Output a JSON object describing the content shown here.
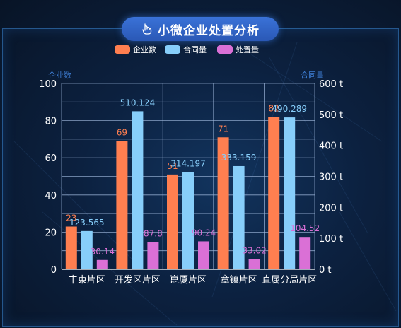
{
  "title": "小微企业处置分析",
  "icon": "hand-pointer-icon",
  "colors": {
    "enterprise": "#ff7f50",
    "contract": "#87cefa",
    "disposal": "#da70d6",
    "grid": "#9fb8dc",
    "axis_text": "#ffffff",
    "axis_name": "#3f7fd6"
  },
  "chart_data": {
    "type": "bar",
    "title": "小微企业处置分析",
    "categories": [
      "丰東片区",
      "开发区片区",
      "崑厦片区",
      "章镇片区",
      "直属分局片区"
    ],
    "series": [
      {
        "name": "企业数",
        "axis": "left",
        "values": [
          23,
          69,
          51,
          71,
          82
        ],
        "labels": [
          "23",
          "69",
          "51",
          "71",
          "82"
        ]
      },
      {
        "name": "合同量",
        "axis": "right",
        "values": [
          123.565,
          510.124,
          314.197,
          333.159,
          490.289
        ],
        "labels": [
          "123.565",
          "510.124",
          "314.197",
          "333.159",
          "490.289"
        ]
      },
      {
        "name": "处置量",
        "axis": "right",
        "values": [
          30.14,
          87.8,
          90.24,
          33.02,
          104.52
        ],
        "labels": [
          "30.14",
          "87.8",
          "90.24",
          "33.02",
          "104.52"
        ]
      }
    ],
    "left_axis": {
      "name": "企业数",
      "ylim": [
        0,
        100
      ],
      "ticks": [
        "0",
        "20",
        "40",
        "60",
        "80",
        "100"
      ]
    },
    "right_axis": {
      "name": "合同量",
      "ylim": [
        0,
        600
      ],
      "ticks": [
        "0 t",
        "100 t",
        "200 t",
        "300 t",
        "400 t",
        "500 t",
        "600 t"
      ]
    },
    "legend_position": "top-center",
    "grid": true
  }
}
